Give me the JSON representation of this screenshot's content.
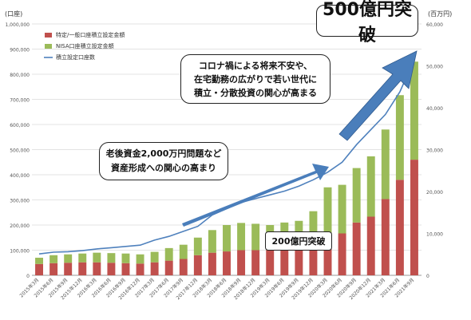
{
  "units": {
    "left": "(口座)",
    "right": "(百万円)"
  },
  "callouts": {
    "top": "500億円突破",
    "mid_line1": "コロナ禍による将来不安や、",
    "mid_line2": "在宅勤務の広がりで若い世代に",
    "mid_line3": "積立・分散投資の関心が高まる",
    "left_line1": "老後資金2,000万円問題など",
    "left_line2": "資産形成への関心の高まり",
    "bottom": "200億円突破"
  },
  "colors": {
    "red": "#c0504d",
    "green": "#9bbb59",
    "line": "#4f81bd",
    "arrow": "#4a7ebb"
  },
  "chart_data": {
    "type": "bar",
    "title": "",
    "xlabel": "",
    "ylabel": "(口座)",
    "y2label": "(百万円)",
    "ylim": [
      0,
      1000000
    ],
    "y2lim": [
      0,
      60000
    ],
    "grid": true,
    "legend_position": "top-left",
    "categories": [
      "2015年3月",
      "2015年6月",
      "2015年9月",
      "2015年12月",
      "2016年3月",
      "2016年6月",
      "2016年9月",
      "2016年12月",
      "2017年3月",
      "2017年6月",
      "2017年9月",
      "2017年12月",
      "2018年3月",
      "2018年6月",
      "2018年9月",
      "2018年12月",
      "2019年3月",
      "2019年6月",
      "2019年9月",
      "2019年12月",
      "2020年3月",
      "2020年6月",
      "2020年9月",
      "2020年12月",
      "2021年3月",
      "2021年6月",
      "2021年9月"
    ],
    "series": [
      {
        "name": "特定/一般口座積立設定金額",
        "axis": "right",
        "stack": "amount",
        "values": [
          2700,
          2900,
          3000,
          3100,
          3100,
          3000,
          2900,
          2800,
          3100,
          3500,
          3900,
          4800,
          5400,
          5700,
          6000,
          6000,
          6000,
          6000,
          6000,
          6600,
          7000,
          10000,
          12600,
          14000,
          18200,
          22800,
          27600
        ]
      },
      {
        "name": "NISA口座積立設定金額",
        "axis": "right",
        "stack": "amount",
        "values": [
          1500,
          1900,
          2000,
          2100,
          2300,
          2300,
          2300,
          2200,
          2500,
          3000,
          3400,
          4200,
          5400,
          6300,
          6500,
          6300,
          6000,
          6600,
          7000,
          8700,
          14000,
          11600,
          13000,
          14400,
          16600,
          20200,
          23400
        ]
      },
      {
        "name": "積立設定口座数",
        "axis": "left",
        "type": "line",
        "values": [
          85000,
          92000,
          94000,
          98000,
          105000,
          110000,
          115000,
          120000,
          140000,
          155000,
          175000,
          195000,
          240000,
          265000,
          290000,
          305000,
          320000,
          335000,
          355000,
          380000,
          410000,
          450000,
          520000,
          580000,
          640000,
          730000,
          860000
        ]
      }
    ]
  }
}
